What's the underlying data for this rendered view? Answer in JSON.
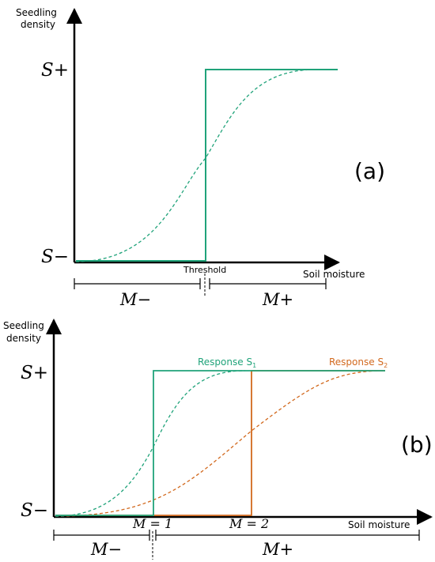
{
  "panel_a": {
    "tag": "(a)",
    "y_label_line1": "Seedling",
    "y_label_line2": "density",
    "y_top": "S+",
    "y_bottom": "S−",
    "x_label": "Soil moisture",
    "threshold_label": "Threshold",
    "range_left": "M−",
    "range_right": "M+",
    "color": "#20a37a"
  },
  "panel_b": {
    "tag": "(b)",
    "y_label_line1": "Seedling",
    "y_label_line2": "density",
    "y_top": "S+",
    "y_bottom": "S−",
    "x_label": "Soil moisture",
    "m1_label": "M = 1",
    "m2_label": "M = 2",
    "range_left": "M−",
    "range_right": "M+",
    "response1": {
      "prefix": "Response S",
      "sub": "1",
      "color": "#20a37a"
    },
    "response2": {
      "prefix": "Response S",
      "sub": "2",
      "color": "#d2691e"
    }
  }
}
